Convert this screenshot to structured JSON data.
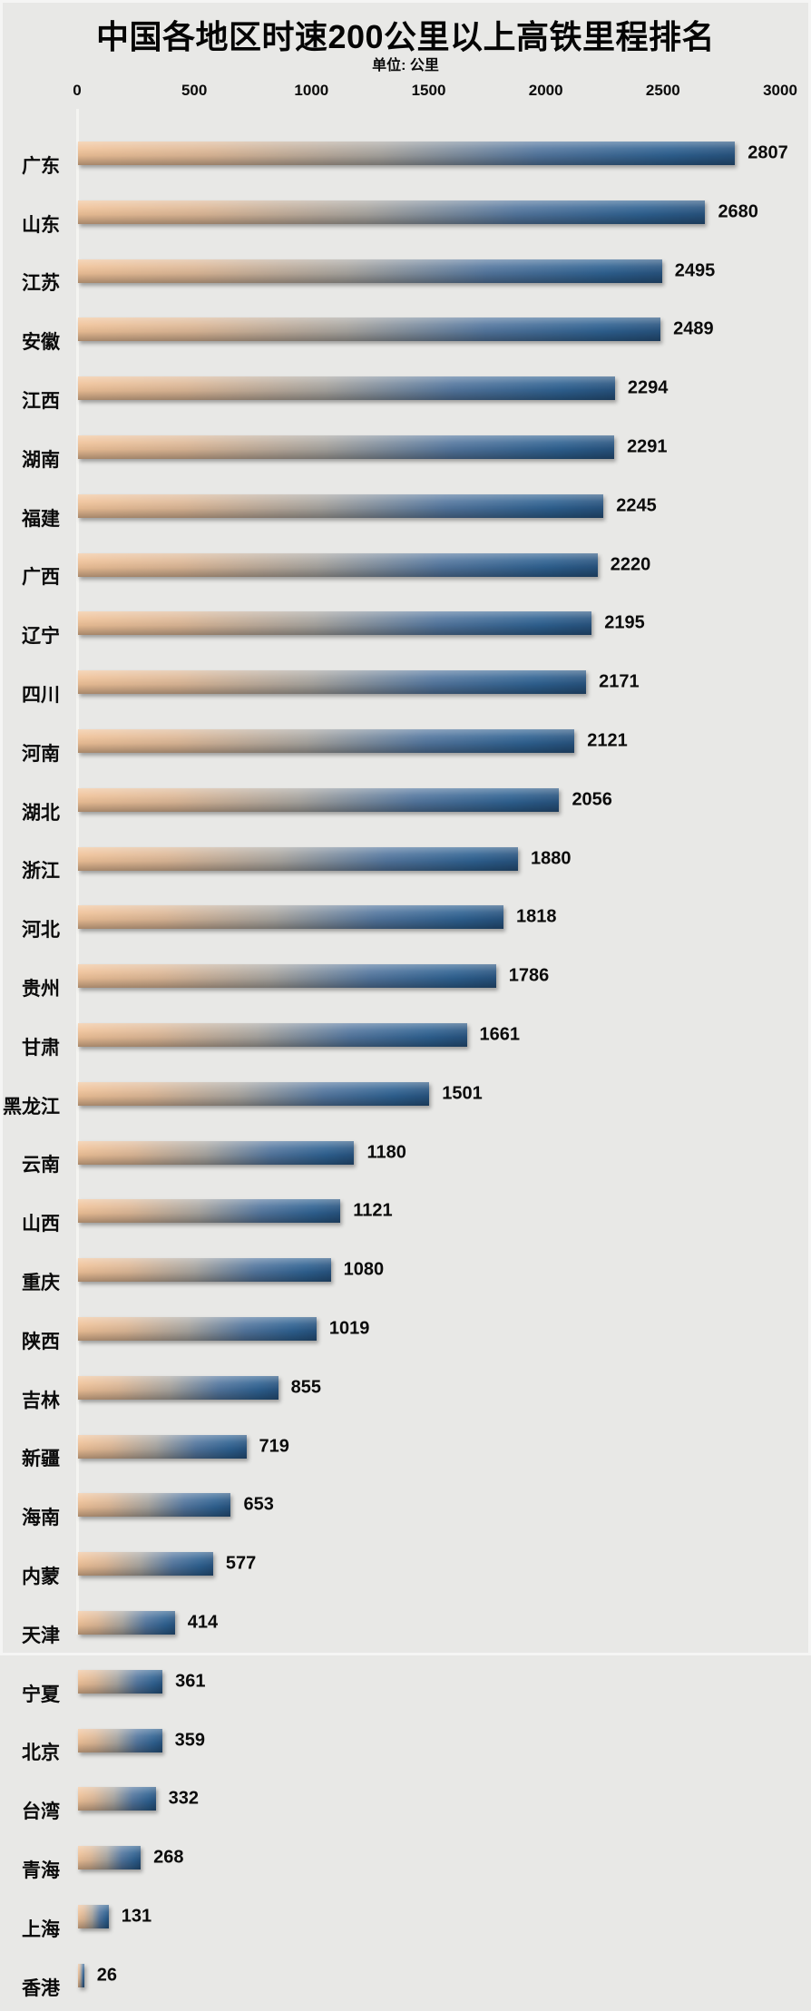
{
  "chart": {
    "title": "中国各地区时速200公里以上高铁里程排名",
    "subtitle": "单位: 公里"
  },
  "chart_data": {
    "type": "bar",
    "orientation": "horizontal",
    "title": "中国各地区时速200公里以上高铁里程排名",
    "subtitle": "单位: 公里",
    "unit": "公里",
    "xlabel": "",
    "ylabel": "",
    "xlim": [
      0,
      3000
    ],
    "x_ticks": [
      0,
      500,
      1000,
      1500,
      2000,
      2500,
      3000
    ],
    "grid": false,
    "legend": false,
    "value_labels": true,
    "categories": [
      "广东",
      "山东",
      "江苏",
      "安徽",
      "江西",
      "湖南",
      "福建",
      "广西",
      "辽宁",
      "四川",
      "河南",
      "湖北",
      "浙江",
      "河北",
      "贵州",
      "甘肃",
      "黑龙江",
      "云南",
      "山西",
      "重庆",
      "陕西",
      "吉林",
      "新疆",
      "海南",
      "内蒙",
      "天津",
      "宁夏",
      "北京",
      "台湾",
      "青海",
      "上海",
      "香港"
    ],
    "values": [
      2807,
      2680,
      2495,
      2489,
      2294,
      2291,
      2245,
      2220,
      2195,
      2171,
      2121,
      2056,
      1880,
      1818,
      1786,
      1661,
      1501,
      1180,
      1121,
      1080,
      1019,
      855,
      719,
      653,
      577,
      414,
      361,
      359,
      332,
      268,
      131,
      26
    ],
    "colors": {
      "background": "#e8e8e6",
      "bar_gradient_left": "#f0c298",
      "bar_gradient_right": "#2e6191",
      "text": "#0b0b0b"
    }
  }
}
